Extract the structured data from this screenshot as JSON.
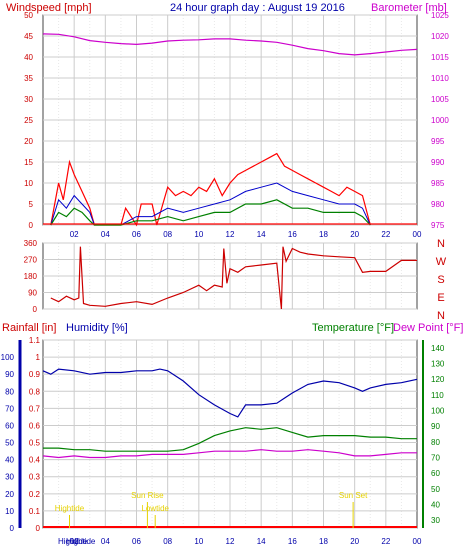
{
  "colors": {
    "wind": "#ff0000",
    "wind_avg": "#0000cc",
    "wind_low": "#008000",
    "barometer": "#cc00cc",
    "direction": "#cc0000",
    "humidity": "#0000aa",
    "temperature": "#008000",
    "dewpoint": "#cc00cc",
    "rainfall": "#ff0000",
    "grid": "#cccccc",
    "axis_red": "#cc0000",
    "axis_blue": "#0000aa",
    "axis_green": "#008000",
    "axis_magenta": "#cc00cc",
    "astro": "#e6d200"
  },
  "chart_data": [
    {
      "type": "line",
      "name": "wind-barometer",
      "title": "24 hour graph day : August 19 2016",
      "left_label": "Windspeed [mph]",
      "right_label": "Barometer [mb]",
      "x_tick_labels": [
        "02",
        "04",
        "06",
        "08",
        "10",
        "12",
        "14",
        "16",
        "18",
        "20",
        "22",
        "00"
      ],
      "left_ticks": [
        "0",
        "5",
        "10",
        "15",
        "20",
        "25",
        "30",
        "35",
        "40",
        "45",
        "50"
      ],
      "right_ticks": [
        "975",
        "980",
        "985",
        "990",
        "995",
        "1000",
        "1005",
        "1010",
        "1015",
        "1020",
        "1025"
      ],
      "ylim_left": [
        0,
        50
      ],
      "ylim_right": [
        975,
        1025
      ],
      "x_range_hours": [
        0,
        24
      ],
      "barometer": {
        "x": [
          0,
          1,
          2,
          3,
          4,
          5,
          6,
          7,
          8,
          9,
          10,
          11,
          12,
          13,
          14,
          15,
          16,
          17,
          18,
          19,
          20,
          21,
          22,
          23,
          24
        ],
        "y": [
          1020.5,
          1020.4,
          1019.8,
          1018.9,
          1018.5,
          1018.2,
          1018.0,
          1018.3,
          1018.8,
          1019.0,
          1019.1,
          1019.3,
          1019.3,
          1019.0,
          1018.8,
          1018.5,
          1017.8,
          1017.0,
          1016.5,
          1015.8,
          1015.5,
          1015.8,
          1016.2,
          1016.6,
          1016.8
        ]
      },
      "wind_gust": {
        "x": [
          0.5,
          1.0,
          1.3,
          1.7,
          2.0,
          2.5,
          3.0,
          3.3,
          5.0,
          5.3,
          6.0,
          6.3,
          7.0,
          7.3,
          8.0,
          8.5,
          9.0,
          9.5,
          10.0,
          10.5,
          11.0,
          11.5,
          12.0,
          12.5,
          13.0,
          13.5,
          14.0,
          14.5,
          15.0,
          15.5,
          16.0,
          16.5,
          17.0,
          17.5,
          18.0,
          18.5,
          19.0,
          19.5,
          20.0,
          20.5,
          21.0
        ],
        "y": [
          0,
          10,
          6,
          15,
          12,
          8,
          4,
          0,
          0,
          4,
          0,
          5,
          5,
          0,
          9,
          7,
          8,
          7,
          9,
          8,
          11,
          7,
          10,
          12,
          13,
          14,
          15,
          16,
          17,
          14,
          13,
          12,
          11,
          10,
          9,
          8,
          7,
          9,
          8,
          7,
          0
        ]
      },
      "wind_avg": {
        "x": [
          0.5,
          1.0,
          1.5,
          2.0,
          2.5,
          3.0,
          3.3,
          5.0,
          6.0,
          7.0,
          8.0,
          9.0,
          10.0,
          11.0,
          12.0,
          13.0,
          14.0,
          15.0,
          16.0,
          17.0,
          18.0,
          19.0,
          20.0,
          20.5,
          21.0
        ],
        "y": [
          0,
          6,
          4,
          7,
          5,
          3,
          0,
          0,
          2,
          2,
          4,
          3,
          4,
          5,
          6,
          8,
          9,
          10,
          8,
          7,
          6,
          5,
          5,
          4,
          0
        ]
      },
      "wind_low": {
        "x": [
          0.5,
          1.0,
          1.5,
          2.0,
          2.5,
          3.0,
          3.3,
          5.0,
          6.0,
          7.0,
          8.0,
          9.0,
          10.0,
          11.0,
          12.0,
          13.0,
          14.0,
          15.0,
          16.0,
          17.0,
          18.0,
          19.0,
          20.0,
          20.5,
          21.0
        ],
        "y": [
          0,
          3,
          2,
          4,
          3,
          1,
          0,
          0,
          1,
          1,
          2,
          1,
          2,
          3,
          3,
          5,
          5,
          6,
          4,
          4,
          3,
          3,
          3,
          2,
          0
        ]
      }
    },
    {
      "type": "line",
      "name": "wind-direction",
      "left_ticks": [
        "0",
        "90",
        "180",
        "270",
        "360"
      ],
      "right_ticks": [
        "N",
        "W",
        "S",
        "E",
        "N"
      ],
      "ylim": [
        0,
        360
      ],
      "direction": {
        "x": [
          0.5,
          1.0,
          1.5,
          2.0,
          2.3,
          2.4,
          2.6,
          3.0,
          4.0,
          5.0,
          6.0,
          7.0,
          8.0,
          9.0,
          10.0,
          10.5,
          11.0,
          11.5,
          11.6,
          11.8,
          12.0,
          12.5,
          13.0,
          14.0,
          15.0,
          15.3,
          15.4,
          15.6,
          16.0,
          16.5,
          17.0,
          18.0,
          19.0,
          20.0,
          20.5,
          21.0,
          22.0,
          23.0,
          24.0
        ],
        "y": [
          60,
          40,
          70,
          50,
          60,
          340,
          30,
          20,
          15,
          30,
          40,
          25,
          60,
          90,
          130,
          100,
          130,
          120,
          330,
          140,
          220,
          200,
          230,
          240,
          250,
          0,
          340,
          260,
          330,
          310,
          300,
          290,
          285,
          280,
          200,
          205,
          205,
          265,
          265
        ]
      }
    },
    {
      "type": "line",
      "name": "temperature-humidity",
      "left_label": "Rainfall [in]",
      "left_label2": "Humidity [%]",
      "right_label": "Temperature [°F]",
      "right_label2": "Dew Point [°F]",
      "left_ticks_humidity": [
        "0",
        "10",
        "20",
        "30",
        "40",
        "50",
        "60",
        "70",
        "80",
        "90",
        "100"
      ],
      "left_ticks_rain": [
        "0",
        "0.1",
        "0.2",
        "0.3",
        "0.4",
        "0.5",
        "0.6",
        "0.7",
        "0.8",
        "0.9",
        "1",
        "1.1"
      ],
      "right_ticks": [
        "30",
        "40",
        "50",
        "60",
        "70",
        "80",
        "90",
        "100",
        "110",
        "120",
        "130",
        "140"
      ],
      "ylim_humidity": [
        0,
        100
      ],
      "ylim_temp": [
        30,
        140
      ],
      "humidity": {
        "x": [
          0,
          0.5,
          1,
          2,
          3,
          4,
          5,
          6,
          7,
          7.5,
          8,
          9,
          10,
          11,
          12,
          12.5,
          13,
          14,
          15,
          15.5,
          16,
          17,
          18,
          19,
          20,
          20.5,
          21,
          22,
          23,
          24
        ],
        "y": [
          92,
          90,
          93,
          92,
          90,
          91,
          91,
          92,
          92,
          93,
          92,
          86,
          78,
          72,
          67,
          65,
          72,
          72,
          73,
          76,
          79,
          84,
          86,
          85,
          82,
          80,
          82,
          84,
          85,
          87
        ]
      },
      "temperature": {
        "x": [
          0,
          1,
          2,
          3,
          4,
          5,
          6,
          7,
          8,
          9,
          10,
          11,
          12,
          13,
          14,
          15,
          16,
          17,
          18,
          19,
          20,
          21,
          22,
          23,
          24
        ],
        "y": [
          76,
          76,
          75,
          75,
          74,
          74,
          74,
          74,
          74,
          75,
          79,
          84,
          87,
          89,
          88,
          89,
          86,
          83,
          84,
          84,
          84,
          83,
          83,
          82,
          82
        ]
      },
      "dewpoint": {
        "x": [
          0,
          1,
          2,
          3,
          4,
          5,
          6,
          7,
          8,
          9,
          10,
          11,
          12,
          13,
          14,
          15,
          16,
          17,
          18,
          19,
          20,
          21,
          22,
          23,
          24
        ],
        "y": [
          71,
          70,
          71,
          70,
          70,
          71,
          71,
          72,
          72,
          72,
          73,
          74,
          74,
          74,
          75,
          74,
          74,
          75,
          74,
          73,
          71,
          71,
          72,
          73,
          73
        ]
      },
      "rainfall": {
        "x": [
          0,
          24
        ],
        "y": [
          0,
          0
        ]
      },
      "astro": [
        {
          "label": "Hightide",
          "x": 1.7,
          "row": "bottom"
        },
        {
          "label": "Sun Rise",
          "x": 6.7,
          "row": "top"
        },
        {
          "label": "Lowtide",
          "x": 7.2,
          "row": "bottom"
        },
        {
          "label": "Sun Set",
          "x": 19.9,
          "row": "top"
        }
      ],
      "bottom_labels": [
        "Hightide",
        "Hightide"
      ],
      "x_tick_labels": [
        "02",
        "04",
        "06",
        "08",
        "10",
        "12",
        "14",
        "16",
        "18",
        "20",
        "22",
        "00"
      ]
    }
  ]
}
